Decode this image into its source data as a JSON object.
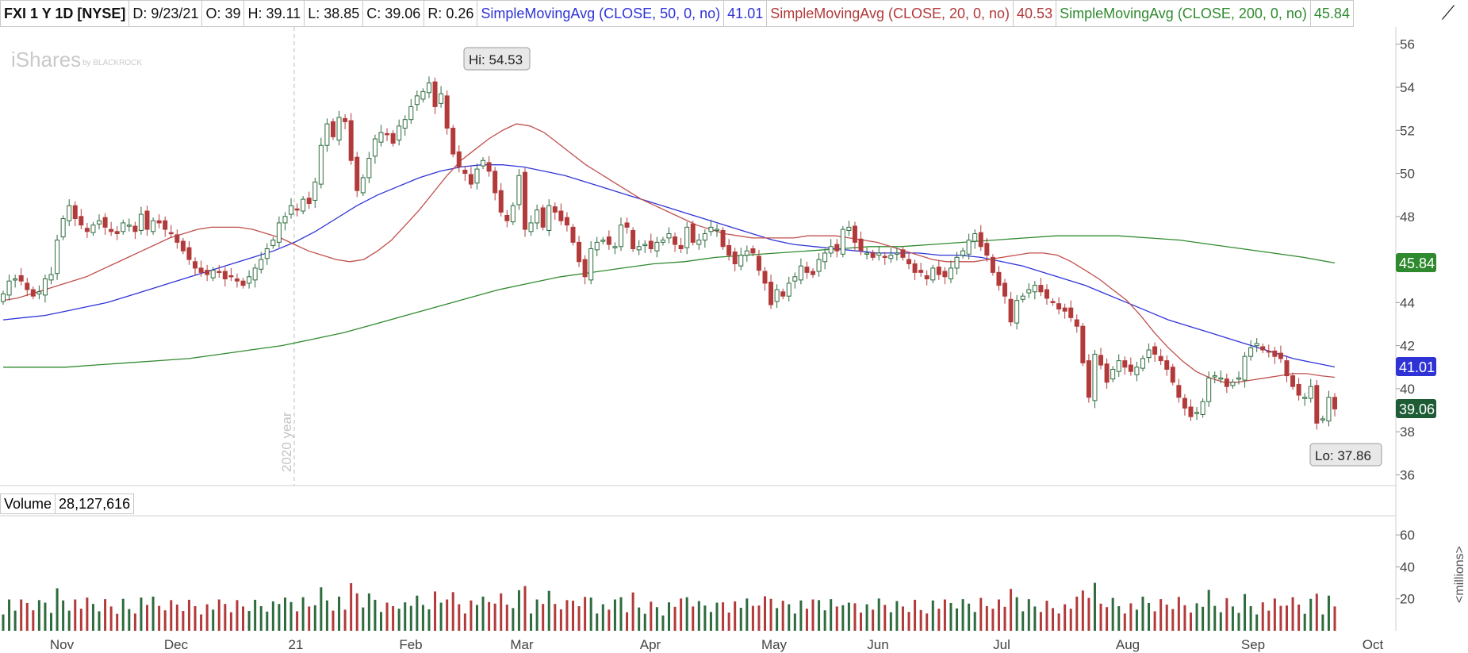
{
  "header": {
    "title": "FXI 1 Y 1D [NYSE]",
    "date": "D: 9/23/21",
    "open": "O: 39",
    "high": "H: 39.11",
    "low": "L: 38.85",
    "close": "C: 39.06",
    "range": "R: 0.26",
    "sma50_label": "SimpleMovingAvg (CLOSE, 50, 0, no)",
    "sma50_value": "41.01",
    "sma20_label": "SimpleMovingAvg (CLOSE, 20, 0, no)",
    "sma20_value": "40.53",
    "sma200_label": "SimpleMovingAvg (CLOSE, 200, 0, no)",
    "sma200_value": "45.84",
    "draw_icon": "line-drawing-icon"
  },
  "watermark": "iShares",
  "watermark_sub": "by BLACKROCK",
  "year_marker": "2020 year",
  "callouts": {
    "hi": "Hi: 54.53",
    "lo": "Lo: 37.86"
  },
  "price_badges": {
    "sma200": "45.84",
    "sma50": "41.01",
    "last": "39.06"
  },
  "volume": {
    "label": "Volume",
    "value": "28,127,616",
    "unit": "<millions>"
  },
  "colors": {
    "up": "#2e6b3e",
    "down": "#b23a3a",
    "sma50": "#2f33d6",
    "sma20": "#c0504d",
    "sma200": "#2f8a2f",
    "last_badge": "#1e5c36"
  },
  "chart_data": {
    "type": "candlestick",
    "price_axis": {
      "ylim": [
        35.5,
        56.8
      ],
      "ticks": [
        36,
        38,
        40,
        42,
        44,
        46,
        48,
        50,
        52,
        54,
        56
      ]
    },
    "volume_axis": {
      "ylim": [
        0,
        72
      ],
      "ticks": [
        20,
        40,
        60
      ]
    },
    "x_ticks": [
      "Nov",
      "Dec",
      "21",
      "Feb",
      "Mar",
      "Apr",
      "May",
      "Jun",
      "Jul",
      "Aug",
      "Sep",
      "Oct"
    ],
    "closes": [
      44.4,
      45.0,
      45.1,
      45.0,
      44.6,
      44.3,
      44.5,
      45.1,
      45.3,
      46.9,
      47.9,
      48.5,
      47.9,
      47.6,
      47.3,
      47.6,
      47.8,
      47.5,
      47.3,
      47.2,
      47.7,
      47.6,
      47.3,
      48.1,
      47.4,
      47.8,
      47.7,
      47.4,
      47.2,
      46.8,
      46.4,
      46.0,
      45.6,
      45.4,
      45.3,
      45.5,
      45.4,
      45.1,
      45.2,
      45.0,
      44.8,
      45.2,
      45.6,
      46.0,
      46.5,
      46.9,
      47.7,
      48.0,
      48.5,
      48.3,
      48.8,
      48.6,
      49.6,
      51.3,
      52.3,
      51.7,
      52.6,
      52.4,
      50.6,
      49.2,
      49.8,
      50.7,
      51.6,
      51.9,
      51.8,
      51.4,
      52.2,
      52.5,
      53.1,
      53.6,
      53.8,
      54.2,
      53.1,
      53.7,
      52.1,
      50.9,
      50.3,
      50.0,
      49.5,
      50.2,
      50.6,
      50.1,
      49.1,
      48.2,
      47.8,
      48.5,
      49.9,
      47.4,
      47.7,
      48.3,
      47.5,
      48.5,
      48.2,
      47.8,
      47.6,
      46.8,
      45.9,
      45.2,
      46.5,
      46.8,
      46.9,
      46.7,
      46.6,
      47.6,
      47.5,
      46.5,
      46.6,
      46.7,
      46.5,
      46.8,
      46.9,
      47.2,
      46.7,
      46.5,
      47.5,
      46.8,
      46.9,
      47.2,
      47.5,
      47.4,
      46.6,
      46.2,
      45.8,
      46.2,
      46.4,
      46.3,
      45.5,
      44.9,
      43.9,
      44.6,
      44.3,
      44.9,
      45.2,
      45.7,
      45.4,
      45.3,
      46.0,
      46.3,
      46.6,
      46.4,
      47.4,
      47.5,
      46.8,
      46.4,
      46.3,
      46.1,
      46.3,
      46.1,
      46.2,
      46.3,
      46.1,
      45.8,
      45.4,
      45.4,
      45.1,
      45.6,
      45.3,
      45.2,
      45.6,
      46.1,
      46.4,
      46.9,
      47.2,
      46.6,
      46.2,
      45.4,
      44.8,
      44.3,
      43.1,
      44.1,
      44.3,
      44.6,
      44.8,
      44.5,
      44.2,
      44.0,
      43.7,
      43.6,
      43.3,
      42.9,
      41.2,
      39.6,
      41.6,
      41.1,
      40.3,
      40.9,
      41.3,
      41.0,
      40.8,
      41.0,
      41.4,
      41.8,
      41.6,
      41.3,
      40.9,
      40.3,
      39.6,
      39.1,
      38.7,
      38.9,
      39.4,
      40.5,
      40.6,
      40.5,
      40.1,
      40.3,
      40.5,
      41.5,
      41.9,
      42.1,
      41.8,
      41.7,
      41.5,
      41.4,
      40.6,
      40.1,
      39.7,
      39.6,
      40.1,
      38.4,
      38.6,
      39.6,
      39.06
    ],
    "sma20": [
      44.1,
      44.2,
      44.4,
      44.6,
      44.8,
      45.0,
      45.2,
      45.5,
      45.8,
      46.1,
      46.4,
      46.7,
      47.0,
      47.2,
      47.4,
      47.5,
      47.5,
      47.5,
      47.4,
      47.2,
      47.0,
      46.7,
      46.4,
      46.2,
      46.0,
      45.9,
      46.0,
      46.4,
      46.9,
      47.6,
      48.3,
      49.1,
      49.9,
      50.6,
      51.1,
      51.6,
      52.0,
      52.3,
      52.2,
      51.9,
      51.4,
      50.9,
      50.4,
      50.0,
      49.6,
      49.2,
      48.8,
      48.5,
      48.2,
      47.9,
      47.6,
      47.4,
      47.2,
      47.1,
      47.0,
      47.0,
      47.0,
      47.0,
      47.1,
      47.1,
      47.1,
      47.0,
      46.9,
      46.8,
      46.6,
      46.4,
      46.2,
      46.0,
      45.9,
      45.9,
      45.9,
      46.0,
      46.1,
      46.2,
      46.3,
      46.3,
      46.2,
      45.9,
      45.5,
      45.1,
      44.6,
      44.1,
      43.4,
      42.6,
      41.9,
      41.3,
      40.8,
      40.5,
      40.3,
      40.3,
      40.4,
      40.5,
      40.6,
      40.7,
      40.7,
      40.6,
      40.53
    ],
    "sma50": [
      43.2,
      43.3,
      43.4,
      43.6,
      43.8,
      44.0,
      44.3,
      44.6,
      44.9,
      45.2,
      45.5,
      45.8,
      46.1,
      46.4,
      46.8,
      47.3,
      47.9,
      48.5,
      49.0,
      49.4,
      49.8,
      50.1,
      50.3,
      50.4,
      50.4,
      50.3,
      50.1,
      49.9,
      49.6,
      49.3,
      49.0,
      48.7,
      48.4,
      48.1,
      47.8,
      47.5,
      47.2,
      46.9,
      46.7,
      46.6,
      46.5,
      46.4,
      46.3,
      46.3,
      46.3,
      46.2,
      46.2,
      46.1,
      45.9,
      45.7,
      45.4,
      45.1,
      44.8,
      44.4,
      44.0,
      43.6,
      43.2,
      42.9,
      42.6,
      42.3,
      42.0,
      41.7,
      41.4,
      41.2,
      41.01
    ],
    "sma200": [
      41.0,
      41.0,
      41.0,
      41.1,
      41.2,
      41.3,
      41.4,
      41.6,
      41.8,
      42.0,
      42.3,
      42.6,
      43.0,
      43.4,
      43.8,
      44.2,
      44.6,
      44.9,
      45.2,
      45.4,
      45.6,
      45.8,
      45.9,
      46.1,
      46.2,
      46.3,
      46.4,
      46.5,
      46.6,
      46.6,
      46.7,
      46.8,
      46.9,
      47.0,
      47.1,
      47.1,
      47.1,
      47.0,
      46.9,
      46.7,
      46.5,
      46.3,
      46.1,
      45.84
    ],
    "hi": 54.53,
    "lo": 37.86
  }
}
